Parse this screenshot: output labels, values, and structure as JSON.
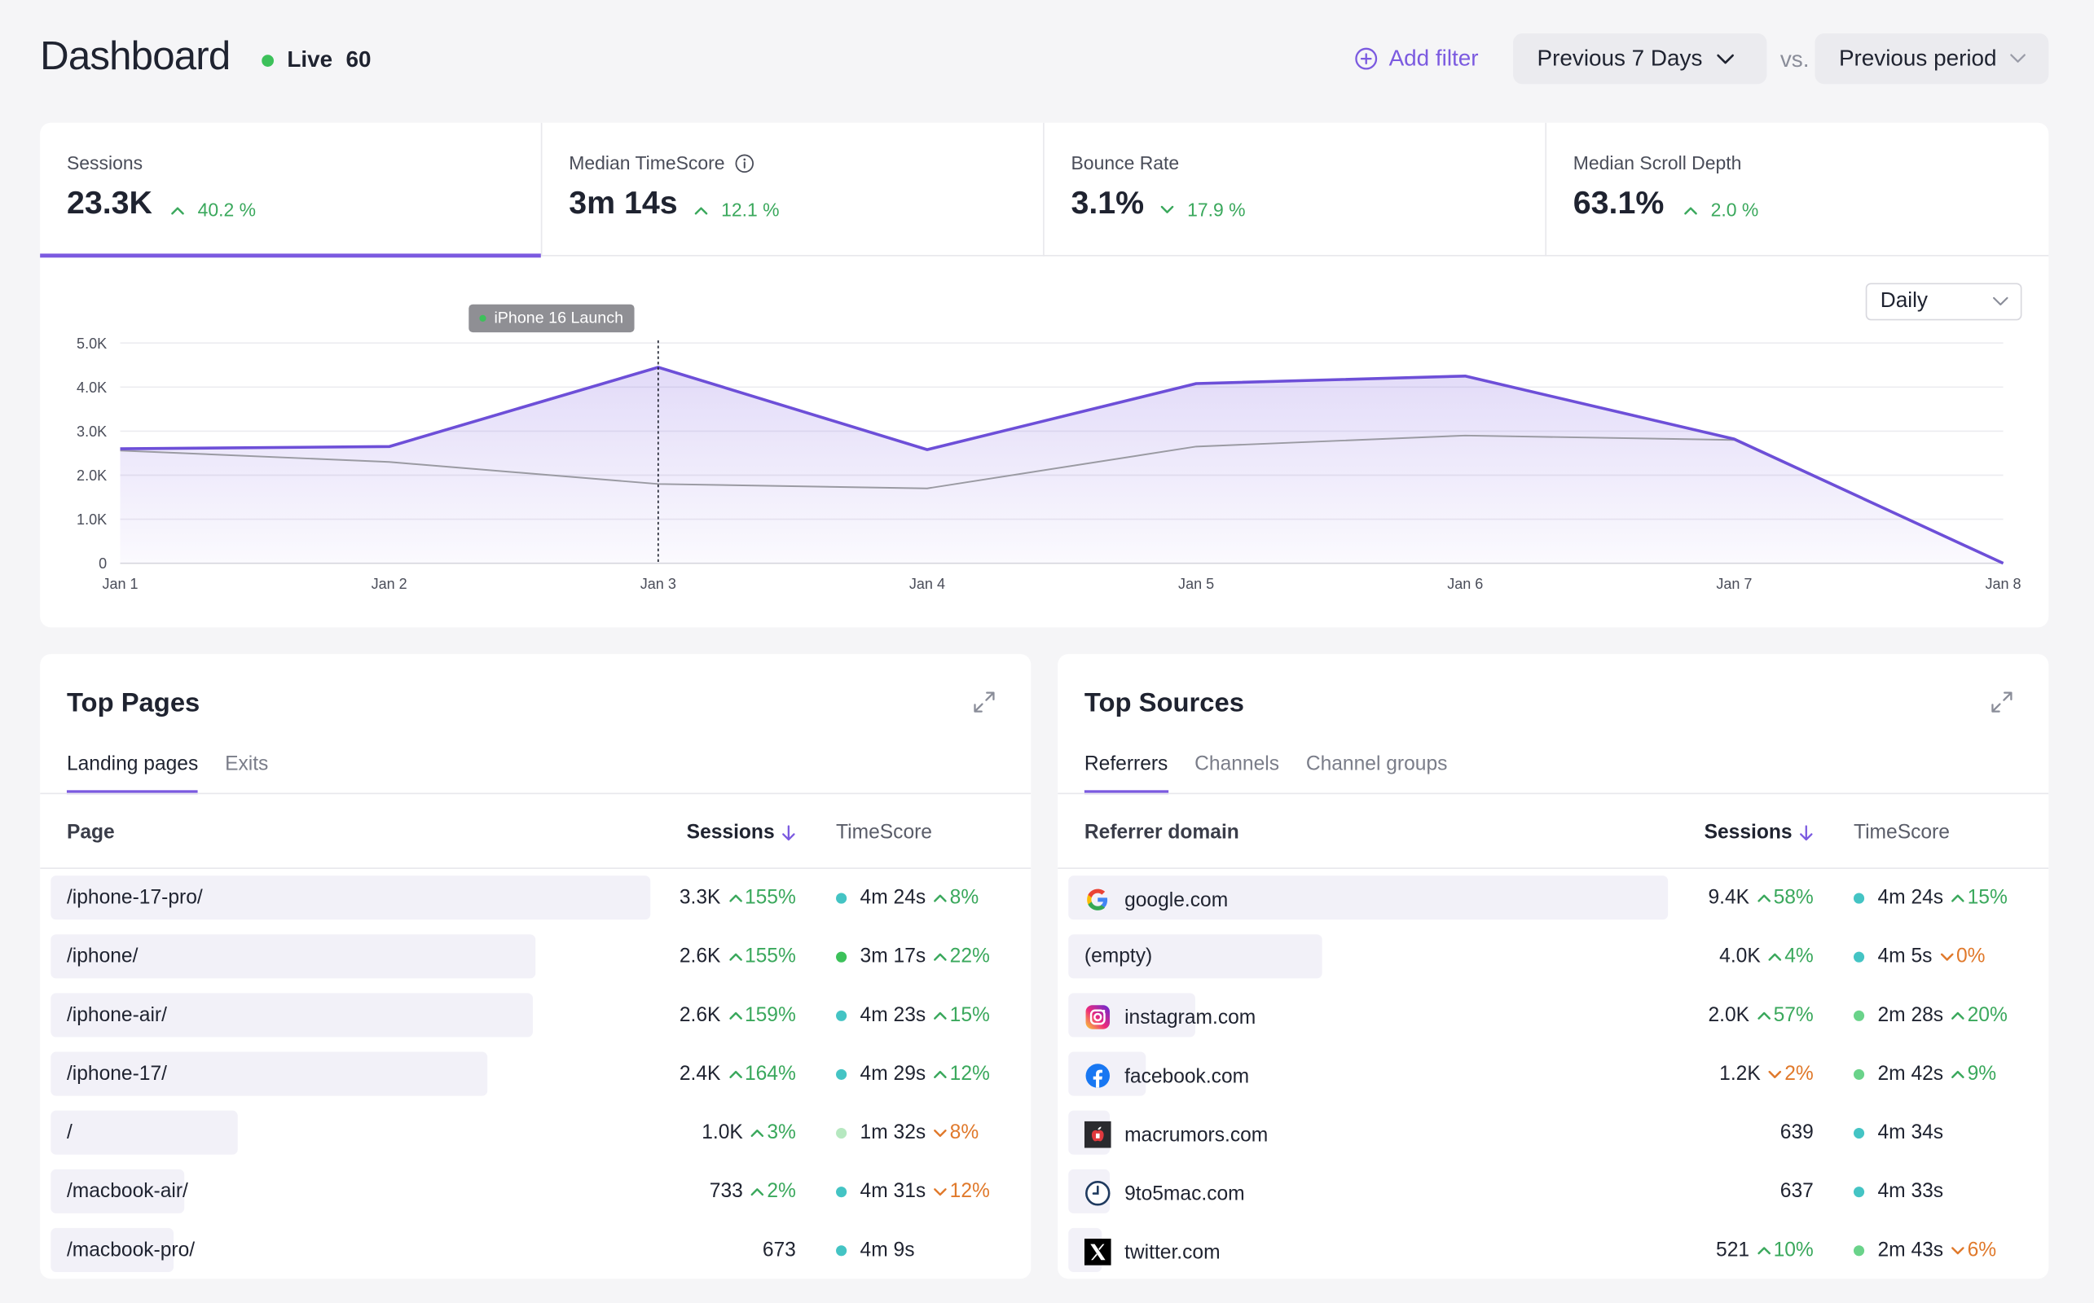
{
  "header": {
    "title": "Dashboard",
    "live_label": "Live",
    "live_count": "60",
    "add_filter": "Add filter",
    "period": "Previous 7 Days",
    "vs": "vs.",
    "compare": "Previous period"
  },
  "colors": {
    "accent": "#7b5ae0",
    "positive": "#3aa85c",
    "negative": "#e0792b",
    "live": "#3cc15a"
  },
  "metrics": [
    {
      "label": "Sessions",
      "value": "23.3K",
      "change": "40.2 %",
      "direction": "up"
    },
    {
      "label": "Median TimeScore",
      "value": "3m 14s",
      "change": "12.1 %",
      "direction": "up"
    },
    {
      "label": "Bounce Rate",
      "value": "3.1%",
      "change": "17.9 %",
      "direction": "down"
    },
    {
      "label": "Median Scroll Depth",
      "value": "63.1%",
      "change": "2.0 %",
      "direction": "up"
    }
  ],
  "granularity": "Daily",
  "chart_data": {
    "type": "area",
    "x": [
      "Jan 1",
      "Jan 2",
      "Jan 3",
      "Jan 4",
      "Jan 5",
      "Jan 6",
      "Jan 7",
      "Jan 8"
    ],
    "yticks": [
      "0",
      "1.0K",
      "2.0K",
      "3.0K",
      "4.0K",
      "5.0K"
    ],
    "ylim": [
      0,
      5000
    ],
    "series": [
      {
        "values": [
          2600,
          2650,
          4450,
          2580,
          4080,
          4250,
          2820,
          0
        ],
        "color": "#6d4fd8"
      },
      {
        "values": [
          2560,
          2300,
          1800,
          1700,
          2650,
          2900,
          2800,
          0
        ],
        "color": "#9a9aa2"
      }
    ],
    "annotation": {
      "label": "iPhone 16 Launch",
      "x": "Jan 3"
    },
    "grid": true
  },
  "top_pages": {
    "title": "Top Pages",
    "tabs": [
      "Landing pages",
      "Exits"
    ],
    "col_page": "Page",
    "col_sessions": "Sessions",
    "col_time": "TimeScore",
    "rows": [
      {
        "label": "/iphone-17-pro/",
        "bar": 1.0,
        "sessions": "3.3K",
        "s_change": "155%",
        "s_dir": "up",
        "dot": "#44c4c4",
        "time": "4m 24s",
        "t_change": "8%",
        "t_dir": "up"
      },
      {
        "label": "/iphone/",
        "bar": 0.808,
        "sessions": "2.6K",
        "s_change": "155%",
        "s_dir": "up",
        "dot": "#3cc15a",
        "time": "3m 17s",
        "t_change": "22%",
        "t_dir": "up"
      },
      {
        "label": "/iphone-air/",
        "bar": 0.804,
        "sessions": "2.6K",
        "s_change": "159%",
        "s_dir": "up",
        "dot": "#44c4c4",
        "time": "4m 23s",
        "t_change": "15%",
        "t_dir": "up"
      },
      {
        "label": "/iphone-17/",
        "bar": 0.728,
        "sessions": "2.4K",
        "s_change": "164%",
        "s_dir": "up",
        "dot": "#44c4c4",
        "time": "4m 29s",
        "t_change": "12%",
        "t_dir": "up"
      },
      {
        "label": "/",
        "bar": 0.312,
        "sessions": "1.0K",
        "s_change": "3%",
        "s_dir": "up",
        "dot": "#b6e8c0",
        "time": "1m 32s",
        "t_change": "8%",
        "t_dir": "down"
      },
      {
        "label": "/macbook-air/",
        "bar": 0.222,
        "sessions": "733",
        "s_change": "2%",
        "s_dir": "up",
        "dot": "#44c4c4",
        "time": "4m 31s",
        "t_change": "12%",
        "t_dir": "down"
      },
      {
        "label": "/macbook-pro/",
        "bar": 0.204,
        "sessions": "673",
        "s_change": "",
        "s_dir": "",
        "dot": "#44c4c4",
        "time": "4m 9s",
        "t_change": "",
        "t_dir": ""
      }
    ]
  },
  "top_sources": {
    "title": "Top Sources",
    "tabs": [
      "Referrers",
      "Channels",
      "Channel groups"
    ],
    "col_domain": "Referrer domain",
    "col_sessions": "Sessions",
    "col_time": "TimeScore",
    "rows": [
      {
        "label": "google.com",
        "icon": "google-icon",
        "bar": 1.0,
        "sessions": "9.4K",
        "s_change": "58%",
        "s_dir": "up",
        "dot": "#44c4c4",
        "time": "4m 24s",
        "t_change": "15%",
        "t_dir": "up"
      },
      {
        "label": "(empty)",
        "icon": "",
        "bar": 0.423,
        "sessions": "4.0K",
        "s_change": "4%",
        "s_dir": "up",
        "dot": "#44c4c4",
        "time": "4m 5s",
        "t_change": "0%",
        "t_dir": "down"
      },
      {
        "label": "instagram.com",
        "icon": "instagram-icon",
        "bar": 0.212,
        "sessions": "2.0K",
        "s_change": "57%",
        "s_dir": "up",
        "dot": "#6ad38a",
        "time": "2m 28s",
        "t_change": "20%",
        "t_dir": "up"
      },
      {
        "label": "facebook.com",
        "icon": "facebook-icon",
        "bar": 0.13,
        "sessions": "1.2K",
        "s_change": "2%",
        "s_dir": "down",
        "dot": "#6ad38a",
        "time": "2m 42s",
        "t_change": "9%",
        "t_dir": "up"
      },
      {
        "label": "macrumors.com",
        "icon": "macrumors-icon",
        "bar": 0.068,
        "sessions": "639",
        "s_change": "",
        "s_dir": "",
        "dot": "#44c4c4",
        "time": "4m 34s",
        "t_change": "",
        "t_dir": ""
      },
      {
        "label": "9to5mac.com",
        "icon": "9to5mac-icon",
        "bar": 0.068,
        "sessions": "637",
        "s_change": "",
        "s_dir": "",
        "dot": "#44c4c4",
        "time": "4m 33s",
        "t_change": "",
        "t_dir": ""
      },
      {
        "label": "twitter.com",
        "icon": "x-twitter-icon",
        "bar": 0.056,
        "sessions": "521",
        "s_change": "10%",
        "s_dir": "up",
        "dot": "#6ad38a",
        "time": "2m 43s",
        "t_change": "6%",
        "t_dir": "down"
      }
    ]
  }
}
